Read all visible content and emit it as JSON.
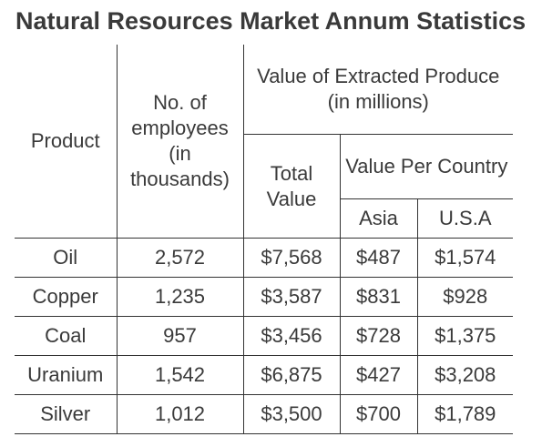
{
  "title": "Natural Resources Market Annum Statistics",
  "headers": {
    "product": "Product",
    "employees": "No. of employees (in thousands)",
    "value_extracted": "Value of Extracted Produce (in millions)",
    "total_value": "Total Value",
    "value_per_country": "Value Per Country",
    "asia": "Asia",
    "usa": "U.S.A"
  },
  "rows": [
    {
      "product": "Oil",
      "employees": "2,572",
      "total": "$7,568",
      "asia": "$487",
      "usa": "$1,574"
    },
    {
      "product": "Copper",
      "employees": "1,235",
      "total": "$3,587",
      "asia": "$831",
      "usa": "$928"
    },
    {
      "product": "Coal",
      "employees": "957",
      "total": "$3,456",
      "asia": "$728",
      "usa": "$1,375"
    },
    {
      "product": "Uranium",
      "employees": "1,542",
      "total": "$6,875",
      "asia": "$427",
      "usa": "$3,208"
    },
    {
      "product": "Silver",
      "employees": "1,012",
      "total": "$3,500",
      "asia": "$700",
      "usa": "$1,789"
    }
  ]
}
